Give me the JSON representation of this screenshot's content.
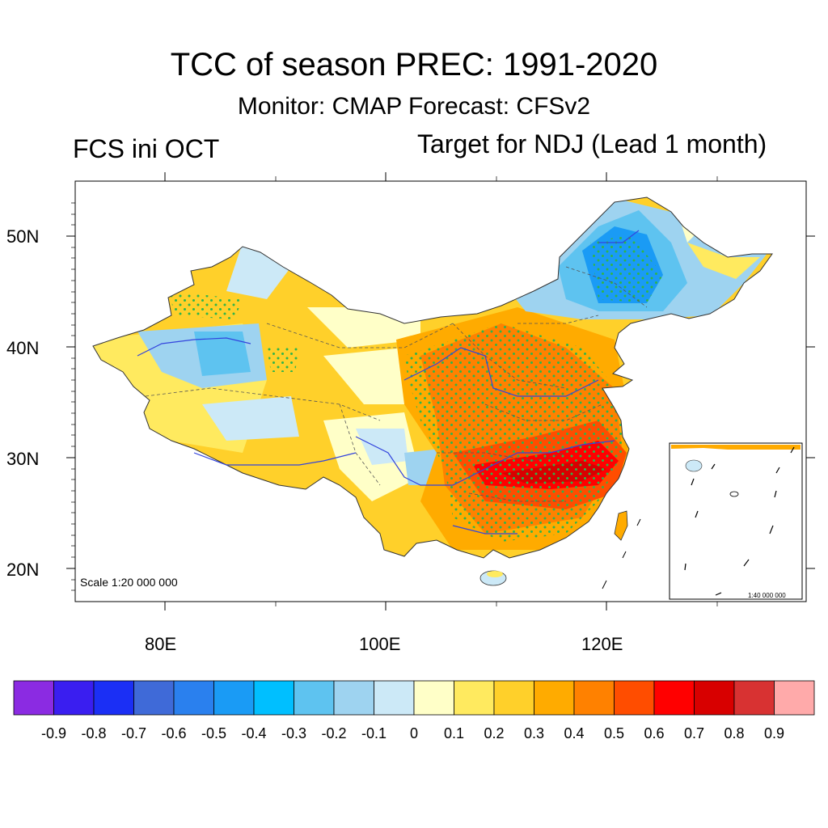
{
  "title": "TCC of season PREC: 1991-2020",
  "subtitle": "Monitor: CMAP   Forecast: CFSv2",
  "left_label": "FCS ini OCT",
  "right_label": "Target for NDJ (Lead 1 month)",
  "map": {
    "scale_label": "Scale 1:20 000 000",
    "inset_scale_label": "1:40 000 000",
    "lat_labels": [
      "50N",
      "40N",
      "30N",
      "20N"
    ],
    "lon_labels": [
      "80E",
      "100E",
      "120E"
    ]
  },
  "colorbar": {
    "labels": [
      "-0.9",
      "-0.8",
      "-0.7",
      "-0.6",
      "-0.5",
      "-0.4",
      "-0.3",
      "-0.2",
      "-0.1",
      "0",
      "0.1",
      "0.2",
      "0.3",
      "0.4",
      "0.5",
      "0.6",
      "0.7",
      "0.8",
      "0.9"
    ],
    "colors": [
      "#8b2be2",
      "#3a1ef0",
      "#1b2ff5",
      "#3f6ad8",
      "#2a80ee",
      "#1a9bf5",
      "#00bfff",
      "#5ec3f0",
      "#9ed3f0",
      "#cce9f7",
      "#ffffc8",
      "#ffea5f",
      "#ffd02a",
      "#ffab00",
      "#ff8100",
      "#ff4d00",
      "#ff0000",
      "#d80000",
      "#d83232",
      "#ffaaaa"
    ]
  },
  "colors": {
    "stipple": "#2fb44a",
    "river": "#3344dd",
    "border": "#333333"
  }
}
